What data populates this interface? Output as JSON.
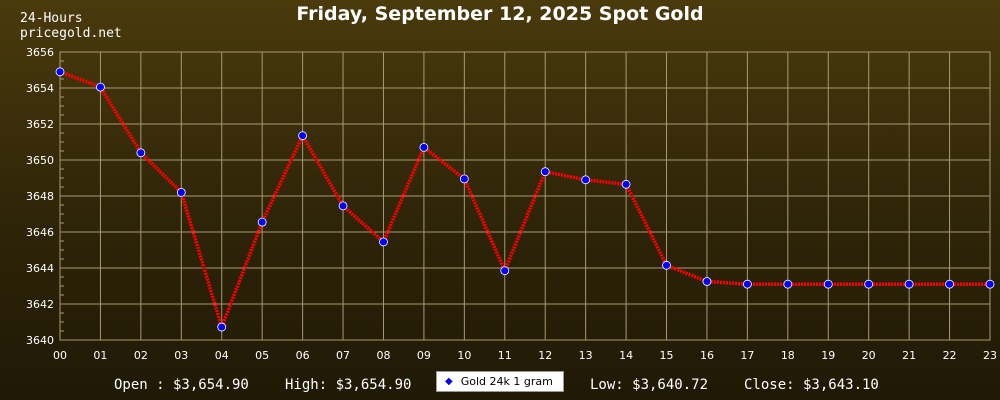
{
  "header": {
    "title": "Friday, September 12, 2025 Spot Gold",
    "period": "24-Hours",
    "site": "pricegold.net"
  },
  "summary": {
    "open": "Open : $3,654.90",
    "high": "High: $3,654.90",
    "low": "Low: $3,640.72",
    "close": "Close: $3,643.10"
  },
  "chart_data": {
    "type": "line",
    "categories": [
      "00",
      "01",
      "02",
      "03",
      "04",
      "05",
      "06",
      "07",
      "08",
      "09",
      "10",
      "11",
      "12",
      "13",
      "14",
      "15",
      "16",
      "17",
      "18",
      "19",
      "20",
      "21",
      "22",
      "23"
    ],
    "series": [
      {
        "name": "Gold 24k 1 gram",
        "values": [
          3654.9,
          3654.05,
          3650.4,
          3648.2,
          3640.72,
          3646.55,
          3651.35,
          3647.45,
          3645.45,
          3650.7,
          3648.95,
          3643.85,
          3649.35,
          3648.9,
          3648.65,
          3644.15,
          3643.25,
          3643.1,
          3643.1,
          3643.1,
          3643.1,
          3643.1,
          3643.1,
          3643.1
        ]
      }
    ],
    "yticks": [
      "3640",
      "3642",
      "3644",
      "3646",
      "3648",
      "3650",
      "3652",
      "3654",
      "3656"
    ],
    "ylim": [
      3640,
      3656
    ],
    "grid": true,
    "legend_placement": "bottom-center",
    "colors": {
      "line": "#ff0000",
      "marker": "#0000ff",
      "grid": "#a89a72",
      "axis_text": "#ffffff"
    }
  }
}
